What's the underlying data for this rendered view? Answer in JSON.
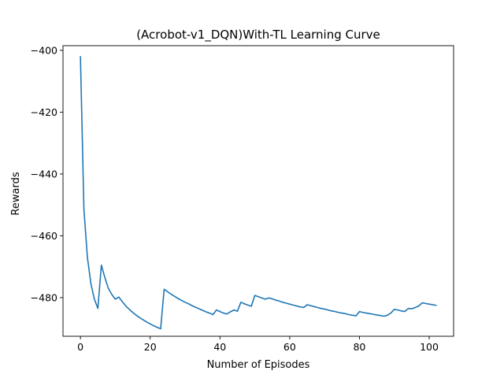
{
  "chart_data": {
    "type": "line",
    "title": "(Acrobot-v1_DQN)With-TL Learning Curve",
    "xlabel": "Number of Episodes",
    "ylabel": "Rewards",
    "xlim": [
      -5,
      107
    ],
    "ylim": [
      -492.5,
      -398.5
    ],
    "xticks": [
      0,
      20,
      40,
      60,
      80,
      100
    ],
    "yticks": [
      -400,
      -420,
      -440,
      -460,
      -480
    ],
    "xtick_labels": [
      "0",
      "20",
      "40",
      "60",
      "80",
      "100"
    ],
    "ytick_labels": [
      "−400",
      "−420",
      "−440",
      "−460",
      "−480"
    ],
    "grid": false,
    "line_color": "#1f77b4",
    "series": [
      {
        "x": [
          0,
          1,
          2,
          3,
          4,
          5,
          6,
          7,
          8,
          9,
          10,
          11,
          12,
          13,
          14,
          15,
          16,
          17,
          18,
          19,
          20,
          21,
          22,
          23,
          24,
          25,
          26,
          27,
          28,
          29,
          30,
          31,
          32,
          33,
          34,
          35,
          36,
          37,
          38,
          39,
          40,
          41,
          42,
          43,
          44,
          45,
          46,
          47,
          48,
          49,
          50,
          51,
          52,
          53,
          54,
          55,
          56,
          57,
          58,
          59,
          60,
          61,
          62,
          63,
          64,
          65,
          66,
          67,
          68,
          69,
          70,
          71,
          72,
          73,
          74,
          75,
          76,
          77,
          78,
          79,
          80,
          81,
          82,
          83,
          84,
          85,
          86,
          87,
          88,
          89,
          90,
          91,
          92,
          93,
          94,
          95,
          96,
          97,
          98,
          99,
          100,
          101,
          102
        ],
        "y": [
          -402.0,
          -451.5,
          -467.0,
          -475.5,
          -480.5,
          -483.5,
          -469.5,
          -473.5,
          -477.0,
          -479.0,
          -480.5,
          -479.8,
          -481.3,
          -482.7,
          -483.8,
          -484.8,
          -485.7,
          -486.5,
          -487.2,
          -487.9,
          -488.5,
          -489.1,
          -489.6,
          -490.1,
          -477.3,
          -478.1,
          -478.9,
          -479.6,
          -480.3,
          -480.9,
          -481.5,
          -482.0,
          -482.6,
          -483.1,
          -483.6,
          -484.1,
          -484.6,
          -485.0,
          -485.5,
          -484.0,
          -484.5,
          -485.0,
          -485.3,
          -484.6,
          -484.0,
          -484.4,
          -481.5,
          -482.0,
          -482.4,
          -482.8,
          -479.3,
          -479.7,
          -480.1,
          -480.5,
          -480.1,
          -480.4,
          -480.8,
          -481.1,
          -481.5,
          -481.8,
          -482.1,
          -482.4,
          -482.7,
          -483.0,
          -483.2,
          -482.3,
          -482.6,
          -482.9,
          -483.2,
          -483.5,
          -483.7,
          -484.0,
          -484.3,
          -484.5,
          -484.8,
          -485.0,
          -485.2,
          -485.5,
          -485.7,
          -485.9,
          -484.5,
          -484.8,
          -485.0,
          -485.2,
          -485.4,
          -485.6,
          -485.8,
          -486.0,
          -485.7,
          -485.0,
          -483.8,
          -484.0,
          -484.3,
          -484.5,
          -483.5,
          -483.6,
          -483.2,
          -482.7,
          -481.7,
          -481.9,
          -482.1,
          -482.3,
          -482.5
        ]
      }
    ]
  }
}
